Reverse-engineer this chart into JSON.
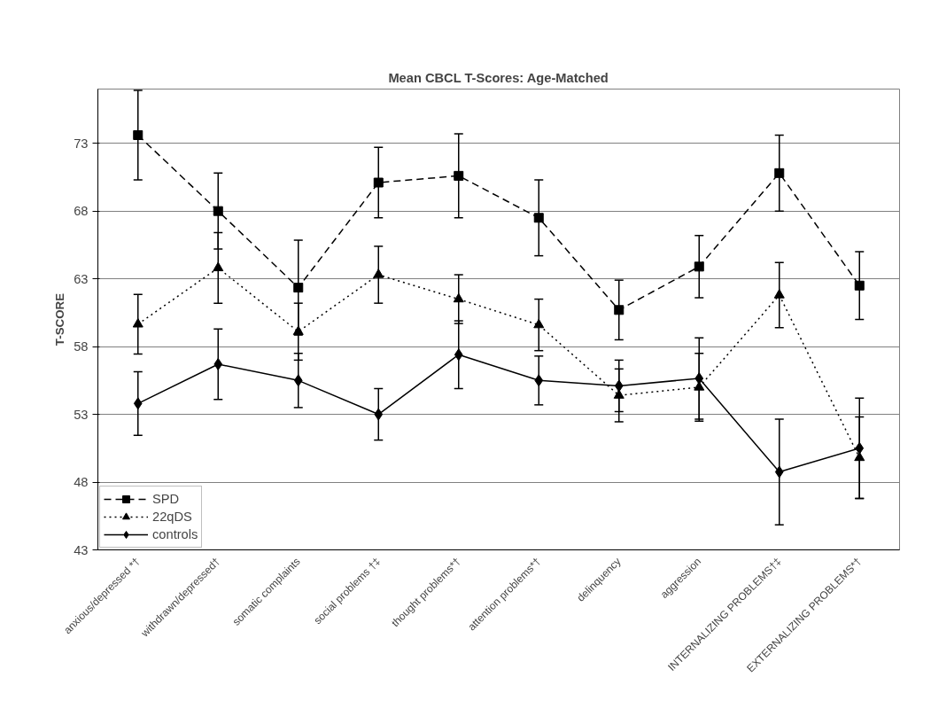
{
  "chart_data": {
    "type": "line",
    "title": "Mean CBCL T-Scores: Age-Matched",
    "ylabel": "T-SCORE",
    "categories": [
      "anxious/depressed *†",
      "withdrawn/depressed†",
      "somatic complaints",
      "social problems †‡",
      "thought problems*†",
      "attention problems*†",
      "delinquency",
      "aggression",
      "INTERNALIZING PROBLEMS†‡",
      "EXTERNALIZING PROBLEMS*†"
    ],
    "series": [
      {
        "name": "SPD",
        "color": "#000000",
        "line_style": "dashed",
        "marker": "square",
        "values": [
          73.6,
          68.0,
          62.35,
          70.1,
          70.6,
          67.5,
          60.7,
          63.9,
          70.8,
          62.5
        ],
        "errors": [
          3.3,
          2.8,
          3.5,
          2.6,
          3.1,
          2.8,
          2.2,
          2.3,
          2.8,
          2.5
        ]
      },
      {
        "name": "22qDS",
        "color": "#000000",
        "line_style": "dotted",
        "marker": "triangle",
        "values": [
          59.65,
          63.8,
          59.1,
          63.3,
          61.5,
          59.6,
          54.4,
          55.0,
          61.8,
          49.8
        ],
        "errors": [
          2.2,
          2.6,
          2.1,
          2.1,
          1.8,
          1.9,
          1.95,
          2.5,
          2.4,
          3.0
        ]
      },
      {
        "name": "controls",
        "color": "#000000",
        "line_style": "solid",
        "marker": "diamond",
        "values": [
          53.8,
          56.7,
          55.5,
          53.0,
          57.4,
          55.5,
          55.1,
          55.65,
          48.75,
          50.5
        ],
        "errors": [
          2.35,
          2.6,
          2.0,
          1.9,
          2.5,
          1.8,
          1.9,
          3.0,
          3.9,
          3.7
        ]
      }
    ],
    "ylim": [
      43,
      77
    ],
    "yticks": [
      43,
      48,
      53,
      58,
      63,
      68,
      73
    ],
    "grid": "y",
    "legend": "bottom left"
  }
}
